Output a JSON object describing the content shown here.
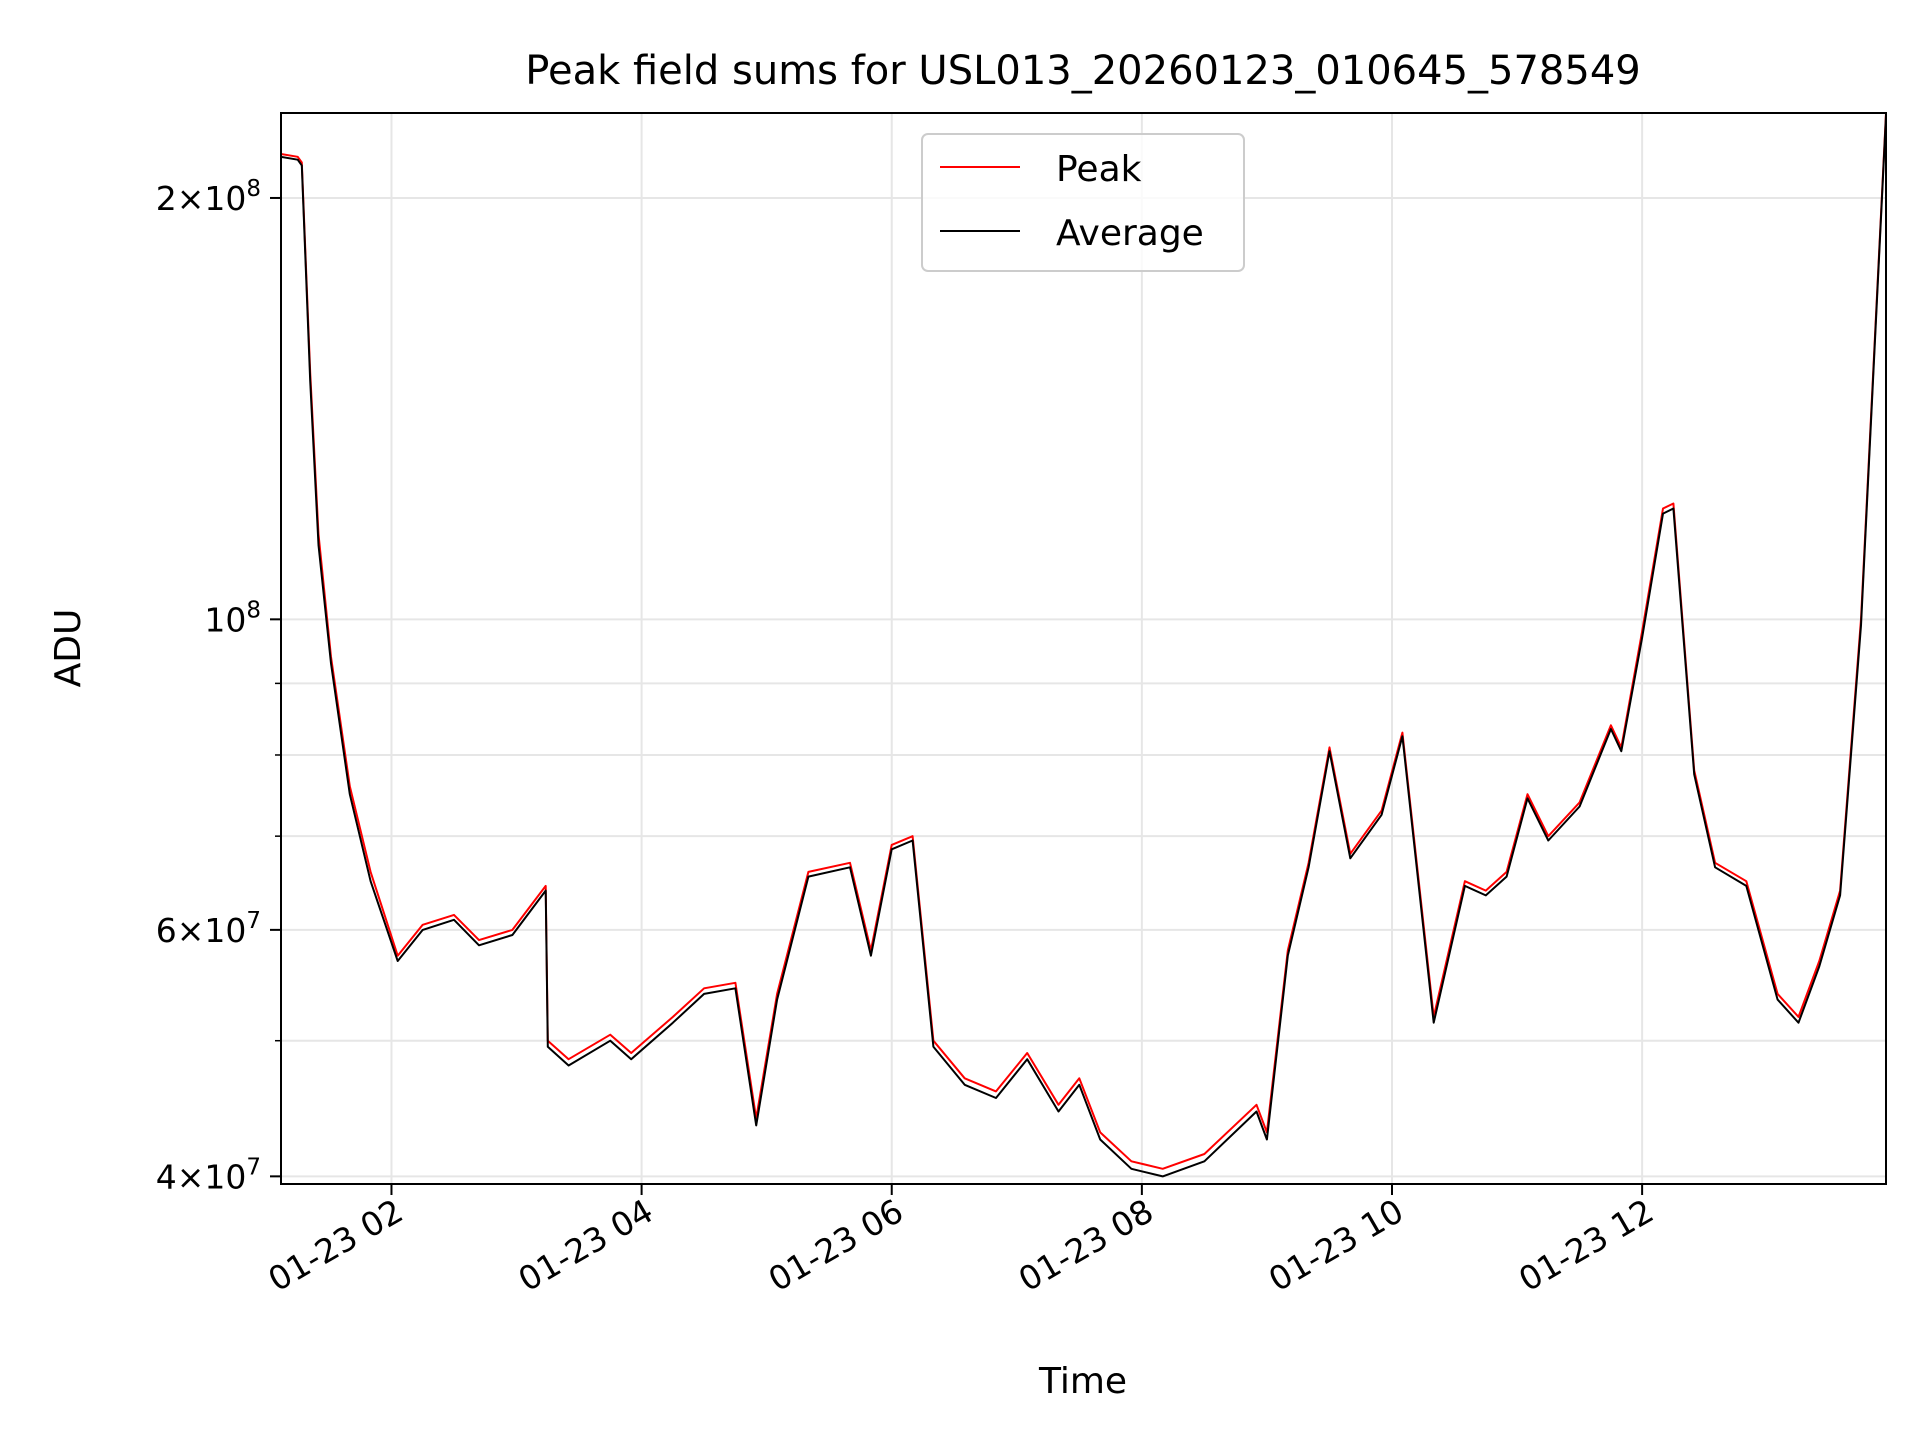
{
  "chart_data": {
    "type": "line",
    "title": "Peak field sums for USL013_20260123_010645_578549",
    "xlabel": "Time",
    "ylabel": "ADU",
    "yscale": "log",
    "ylim": [
      39500000,
      230000000
    ],
    "xlim": [
      "2026-01-23 01:07",
      "2026-01-23 13:57"
    ],
    "grid": true,
    "legend": "upper center",
    "x_ticks": [
      {
        "value": "2026-01-23 02:00",
        "label": "01-23 02"
      },
      {
        "value": "2026-01-23 04:00",
        "label": "01-23 04"
      },
      {
        "value": "2026-01-23 06:00",
        "label": "01-23 06"
      },
      {
        "value": "2026-01-23 08:00",
        "label": "01-23 08"
      },
      {
        "value": "2026-01-23 10:00",
        "label": "01-23 10"
      },
      {
        "value": "2026-01-23 12:00",
        "label": "01-23 12"
      }
    ],
    "y_ticks": [
      {
        "value": 40000000,
        "mantissa": "4",
        "exp": "7"
      },
      {
        "value": 60000000,
        "mantissa": "6",
        "exp": "7"
      },
      {
        "value": 100000000,
        "mantissa": "",
        "exp": "8"
      },
      {
        "value": 200000000,
        "mantissa": "2",
        "exp": "8"
      }
    ],
    "y_minor_gridlines": [
      50000000,
      70000000,
      80000000,
      90000000
    ],
    "series": [
      {
        "name": "Peak",
        "color": "#ff0000",
        "x": [
          "2026-01-23 01:07",
          "2026-01-23 01:15",
          "2026-01-23 01:17",
          "2026-01-23 01:21",
          "2026-01-23 01:25",
          "2026-01-23 01:31",
          "2026-01-23 01:40",
          "2026-01-23 01:50",
          "2026-01-23 02:03",
          "2026-01-23 02:15",
          "2026-01-23 02:30",
          "2026-01-23 02:42",
          "2026-01-23 02:58",
          "2026-01-23 03:14",
          "2026-01-23 03:15",
          "2026-01-23 03:25",
          "2026-01-23 03:45",
          "2026-01-23 03:55",
          "2026-01-23 04:15",
          "2026-01-23 04:30",
          "2026-01-23 04:45",
          "2026-01-23 04:55",
          "2026-01-23 05:05",
          "2026-01-23 05:20",
          "2026-01-23 05:40",
          "2026-01-23 05:50",
          "2026-01-23 06:00",
          "2026-01-23 06:10",
          "2026-01-23 06:20",
          "2026-01-23 06:35",
          "2026-01-23 06:50",
          "2026-01-23 07:05",
          "2026-01-23 07:20",
          "2026-01-23 07:30",
          "2026-01-23 07:40",
          "2026-01-23 07:55",
          "2026-01-23 08:10",
          "2026-01-23 08:30",
          "2026-01-23 08:55",
          "2026-01-23 09:00",
          "2026-01-23 09:10",
          "2026-01-23 09:20",
          "2026-01-23 09:30",
          "2026-01-23 09:40",
          "2026-01-23 09:55",
          "2026-01-23 10:05",
          "2026-01-23 10:20",
          "2026-01-23 10:35",
          "2026-01-23 10:45",
          "2026-01-23 10:55",
          "2026-01-23 11:05",
          "2026-01-23 11:15",
          "2026-01-23 11:30",
          "2026-01-23 11:45",
          "2026-01-23 11:50",
          "2026-01-23 12:00",
          "2026-01-23 12:10",
          "2026-01-23 12:15",
          "2026-01-23 12:25",
          "2026-01-23 12:35",
          "2026-01-23 12:50",
          "2026-01-23 13:05",
          "2026-01-23 13:15",
          "2026-01-23 13:25",
          "2026-01-23 13:35",
          "2026-01-23 13:45",
          "2026-01-23 13:57"
        ],
        "values": [
          215000000,
          214000000,
          212000000,
          150000000,
          115000000,
          94000000,
          76000000,
          66000000,
          57500000,
          60500000,
          61500000,
          59000000,
          60000000,
          64500000,
          50000000,
          48500000,
          50500000,
          49000000,
          52000000,
          54500000,
          55000000,
          44000000,
          54000000,
          66000000,
          67000000,
          58000000,
          69000000,
          70000000,
          50000000,
          47000000,
          46000000,
          49000000,
          45000000,
          47000000,
          43000000,
          41000000,
          40500000,
          41500000,
          45000000,
          43000000,
          58000000,
          67000000,
          81000000,
          68000000,
          73000000,
          83000000,
          52000000,
          65000000,
          64000000,
          66000000,
          75000000,
          70000000,
          74000000,
          84000000,
          81000000,
          98000000,
          120000000,
          121000000,
          78000000,
          67000000,
          65000000,
          54000000,
          52000000,
          57000000,
          64000000,
          100000000,
          230000000
        ]
      },
      {
        "name": "Average",
        "color": "#000000",
        "x": [
          "2026-01-23 01:07",
          "2026-01-23 01:15",
          "2026-01-23 01:17",
          "2026-01-23 01:21",
          "2026-01-23 01:25",
          "2026-01-23 01:31",
          "2026-01-23 01:40",
          "2026-01-23 01:50",
          "2026-01-23 02:03",
          "2026-01-23 02:15",
          "2026-01-23 02:30",
          "2026-01-23 02:42",
          "2026-01-23 02:58",
          "2026-01-23 03:14",
          "2026-01-23 03:15",
          "2026-01-23 03:25",
          "2026-01-23 03:45",
          "2026-01-23 03:55",
          "2026-01-23 04:15",
          "2026-01-23 04:30",
          "2026-01-23 04:45",
          "2026-01-23 04:55",
          "2026-01-23 05:05",
          "2026-01-23 05:20",
          "2026-01-23 05:40",
          "2026-01-23 05:50",
          "2026-01-23 06:00",
          "2026-01-23 06:10",
          "2026-01-23 06:20",
          "2026-01-23 06:35",
          "2026-01-23 06:50",
          "2026-01-23 07:05",
          "2026-01-23 07:20",
          "2026-01-23 07:30",
          "2026-01-23 07:40",
          "2026-01-23 07:55",
          "2026-01-23 08:10",
          "2026-01-23 08:30",
          "2026-01-23 08:55",
          "2026-01-23 09:00",
          "2026-01-23 09:10",
          "2026-01-23 09:20",
          "2026-01-23 09:30",
          "2026-01-23 09:40",
          "2026-01-23 09:55",
          "2026-01-23 10:05",
          "2026-01-23 10:20",
          "2026-01-23 10:35",
          "2026-01-23 10:45",
          "2026-01-23 10:55",
          "2026-01-23 11:05",
          "2026-01-23 11:15",
          "2026-01-23 11:30",
          "2026-01-23 11:45",
          "2026-01-23 11:50",
          "2026-01-23 12:00",
          "2026-01-23 12:10",
          "2026-01-23 12:15",
          "2026-01-23 12:25",
          "2026-01-23 12:35",
          "2026-01-23 12:50",
          "2026-01-23 13:05",
          "2026-01-23 13:15",
          "2026-01-23 13:25",
          "2026-01-23 13:35",
          "2026-01-23 13:45",
          "2026-01-23 13:57"
        ],
        "values": [
          214000000,
          213000000,
          211000000,
          148000000,
          113000000,
          93000000,
          75000000,
          65000000,
          57000000,
          60000000,
          61000000,
          58500000,
          59500000,
          64000000,
          49500000,
          48000000,
          50000000,
          48500000,
          51500000,
          54000000,
          54500000,
          43500000,
          53500000,
          65500000,
          66500000,
          57500000,
          68500000,
          69500000,
          49500000,
          46500000,
          45500000,
          48500000,
          44500000,
          46500000,
          42500000,
          40500000,
          40000000,
          41000000,
          44500000,
          42500000,
          57500000,
          66500000,
          80500000,
          67500000,
          72500000,
          82500000,
          51500000,
          64500000,
          63500000,
          65500000,
          74500000,
          69500000,
          73500000,
          83500000,
          80500000,
          97000000,
          119000000,
          120000000,
          77500000,
          66500000,
          64500000,
          53500000,
          51500000,
          56500000,
          63500000,
          99000000,
          229000000
        ]
      }
    ]
  }
}
